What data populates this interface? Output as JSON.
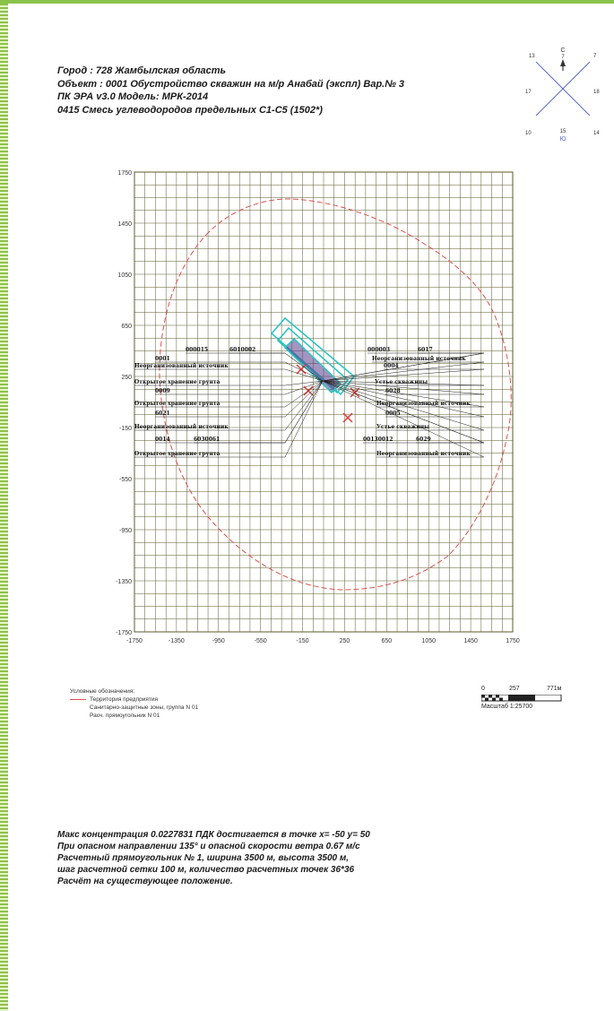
{
  "header": {
    "city": "Город : 728  Жамбылская область",
    "object": "Объект : 0001  Обустройство скважин на м/р Анабай (экспл)  Вар.№ 3",
    "program": "ПК ЭРА v3.0 Модель: МРК-2014",
    "substance": "0415 Смесь углеводородов предельных С1-С5 (1502*)"
  },
  "compass": {
    "north_label": "С",
    "south_label": "Ю",
    "values": {
      "n": "7",
      "nw": "13",
      "ne": "7",
      "w": "17",
      "e": "18",
      "sw": "10",
      "s": "15",
      "se": "14"
    }
  },
  "map": {
    "x_ticks": [
      "-1750",
      "-1350",
      "-950",
      "-550",
      "-150",
      "250",
      "650",
      "1050",
      "1450",
      "1750"
    ],
    "y_ticks": [
      "1750",
      "1450",
      "1050",
      "650",
      "250",
      "-150",
      "-550",
      "-950",
      "-1350",
      "-1750"
    ],
    "source_labels": [
      {
        "text": "000015",
        "side": "left"
      },
      {
        "text": "6010002",
        "side": "left"
      },
      {
        "text": "0001",
        "side": "left"
      },
      {
        "text": "Неорганизованный источник",
        "side": "left"
      },
      {
        "text": "Открытое хранение грунта",
        "side": "left"
      },
      {
        "text": "0009",
        "side": "left"
      },
      {
        "text": "Открытое хранение грунта",
        "side": "left"
      },
      {
        "text": "6021",
        "side": "left"
      },
      {
        "text": "Неорганизованный источник",
        "side": "left"
      },
      {
        "text": "0014",
        "side": "left"
      },
      {
        "text": "6030061",
        "side": "left"
      },
      {
        "text": "Открытое хранение грунта",
        "side": "left"
      },
      {
        "text": "000003",
        "side": "right"
      },
      {
        "text": "6017",
        "side": "right"
      },
      {
        "text": "Неорганизованный источник",
        "side": "right"
      },
      {
        "text": "0004",
        "side": "right"
      },
      {
        "text": "Устье скважины",
        "side": "right"
      },
      {
        "text": "6028",
        "side": "right"
      },
      {
        "text": "Неорганизованный источник",
        "side": "right"
      },
      {
        "text": "0005",
        "side": "right"
      },
      {
        "text": "Устье скважины",
        "side": "right"
      },
      {
        "text": "00130012",
        "side": "right"
      },
      {
        "text": "6029",
        "side": "right"
      },
      {
        "text": "Неорганизованный источник",
        "side": "right"
      }
    ]
  },
  "legend": {
    "title": "Условные обозначения:",
    "items": [
      {
        "label": "Территория предприятия",
        "color": "#d9534f"
      },
      {
        "label": "Санитарно-защитные зоны, группа N 01",
        "color": "#333333"
      },
      {
        "label": "Расч. прямоугольник N 01",
        "color": ""
      }
    ]
  },
  "scale": {
    "start": "0",
    "mid": "257",
    "end": "771м",
    "label": "Масштаб 1:25700"
  },
  "footer": {
    "line1": "Макс концентрация 0.0227831 ПДК достигается в точке x= -50  y= 50",
    "line2": "При опасном направлении 135° и опасной скорости ветра 0.67 м/с",
    "line3": "Расчетный прямоугольник № 1, ширина 3500 м, высота 3500 м,",
    "line4": "шаг расчетной сетки 100 м, количество расчетных точек 36*36",
    "line5": "Расчёт на существующее положение."
  },
  "colors": {
    "grid": "#5b5b2e",
    "boundary": "#d9534f",
    "contour": "#2ec4c4",
    "source_mark": "#e53935",
    "accent_green": "#8bc34a"
  }
}
